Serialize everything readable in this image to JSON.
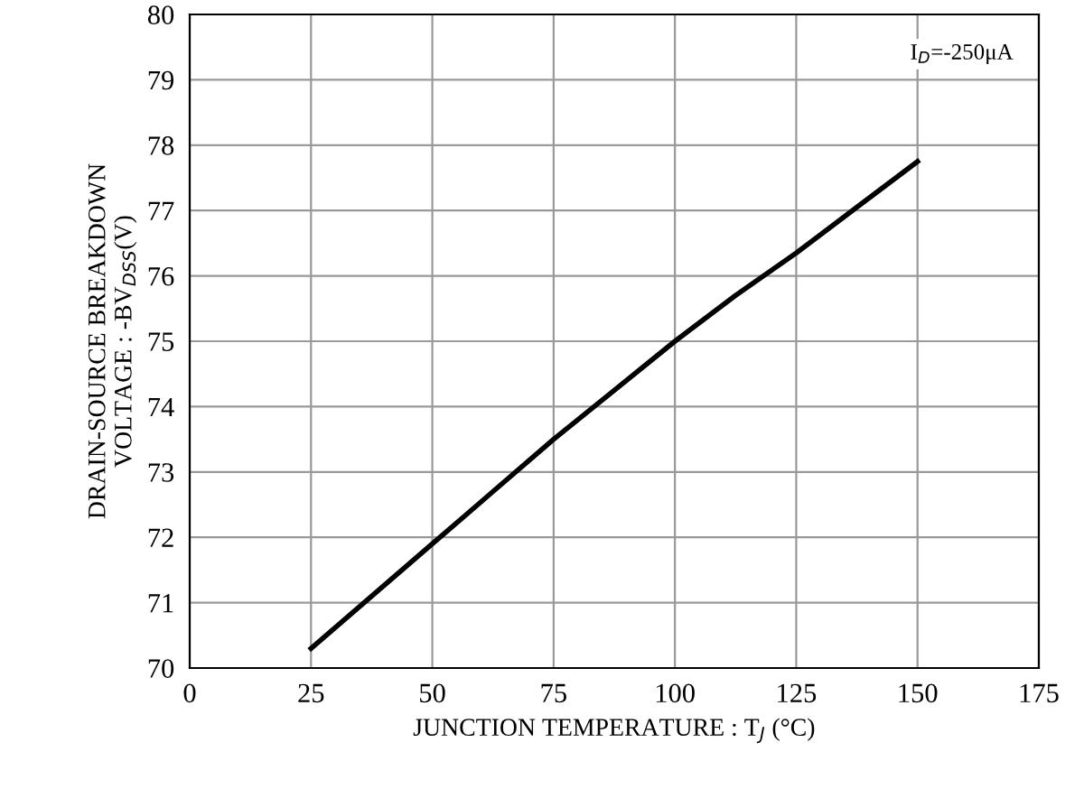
{
  "chart_data": {
    "type": "line",
    "xlabel": "JUNCTION TEMPERATURE : T$_{J}$ (°C)",
    "ylabel": "DRAIN-SOURCE BREAKDOWN\nVOLTAGE : -BV$_{DSS}$(V)",
    "annotations": [
      "I$_{D}$=-250μA"
    ],
    "x": [
      25,
      37.5,
      50,
      62.5,
      75,
      87.5,
      100,
      112.5,
      125,
      137.5,
      150
    ],
    "series": [
      {
        "color": "#000000",
        "values": [
          70.3,
          71.1,
          71.9,
          72.7,
          73.5,
          74.25,
          75.0,
          75.7,
          76.35,
          77.05,
          77.75
        ]
      }
    ],
    "xlim": [
      0,
      175
    ],
    "xticks": [
      0,
      25,
      50,
      75,
      100,
      125,
      150,
      175
    ],
    "ylim": [
      70,
      80
    ],
    "yticks": [
      70,
      71,
      72,
      73,
      74,
      75,
      76,
      77,
      78,
      79,
      80
    ],
    "grid": true,
    "marker": "none",
    "line_style": "solid"
  }
}
